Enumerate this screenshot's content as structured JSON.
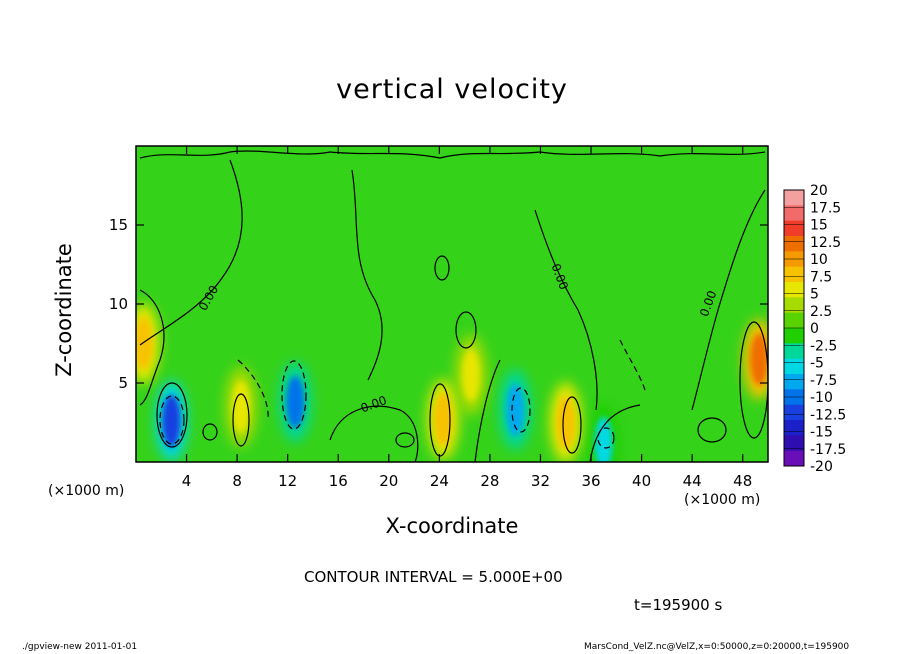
{
  "chart_data": {
    "type": "heatmap",
    "title": "vertical velocity",
    "xlabel": "X-coordinate",
    "ylabel": "Z-coordinate",
    "x_unit_label": "(×1000 m)",
    "xlim": [
      0,
      50
    ],
    "ylim": [
      0,
      20
    ],
    "x_ticks": [
      4,
      8,
      12,
      16,
      20,
      24,
      28,
      32,
      36,
      40,
      44,
      48
    ],
    "y_ticks": [
      5,
      10,
      15
    ],
    "contour_interval_label": "CONTOUR INTERVAL = 5.000E+00",
    "contour_labels": [
      "0.00",
      "0.00",
      "0.00",
      "0.00"
    ],
    "time_label": "t=195900  s",
    "colorbar": {
      "labels": [
        "20",
        "17.5",
        "15",
        "12.5",
        "10",
        "7.5",
        "5",
        "2.5",
        "0",
        "-2.5",
        "-5",
        "-7.5",
        "-10",
        "-12.5",
        "-15",
        "-17.5",
        "-20"
      ],
      "colors": [
        "#f5a0a0",
        "#f36a6a",
        "#f03c28",
        "#ef6e00",
        "#f59a00",
        "#f7c200",
        "#e6e600",
        "#a6dc00",
        "#58d200",
        "#1fcf00",
        "#00d79a",
        "#00d8e4",
        "#00a9ee",
        "#0073ea",
        "#1840e0",
        "#1c20c8",
        "#2e0eb0",
        "#6a0fb8"
      ]
    },
    "field_features": [
      {
        "x": 2.8,
        "z": 2.6,
        "w": -15,
        "note": "strong downdraft"
      },
      {
        "x": 12.6,
        "z": 3.8,
        "w": -12.5
      },
      {
        "x": 30.0,
        "z": 3.3,
        "w": -10
      },
      {
        "x": 37.0,
        "z": 1.2,
        "w": -7.5
      },
      {
        "x": 49.3,
        "z": 6.5,
        "w": 12.5,
        "note": "updraft"
      },
      {
        "x": 0.6,
        "z": 7.5,
        "w": 7.5
      },
      {
        "x": 34.0,
        "z": 2.5,
        "w": 7.5
      },
      {
        "x": 24.3,
        "z": 2.7,
        "w": 7.5
      },
      {
        "x": 8.3,
        "z": 3.5,
        "w": 5
      },
      {
        "x": 26.5,
        "z": 5.5,
        "w": 5
      }
    ]
  },
  "footer": {
    "left": "./gpview-new   2011-01-01",
    "right": "MarsCond_VelZ.nc@VelZ,x=0:50000,z=0:20000,t=195900"
  }
}
